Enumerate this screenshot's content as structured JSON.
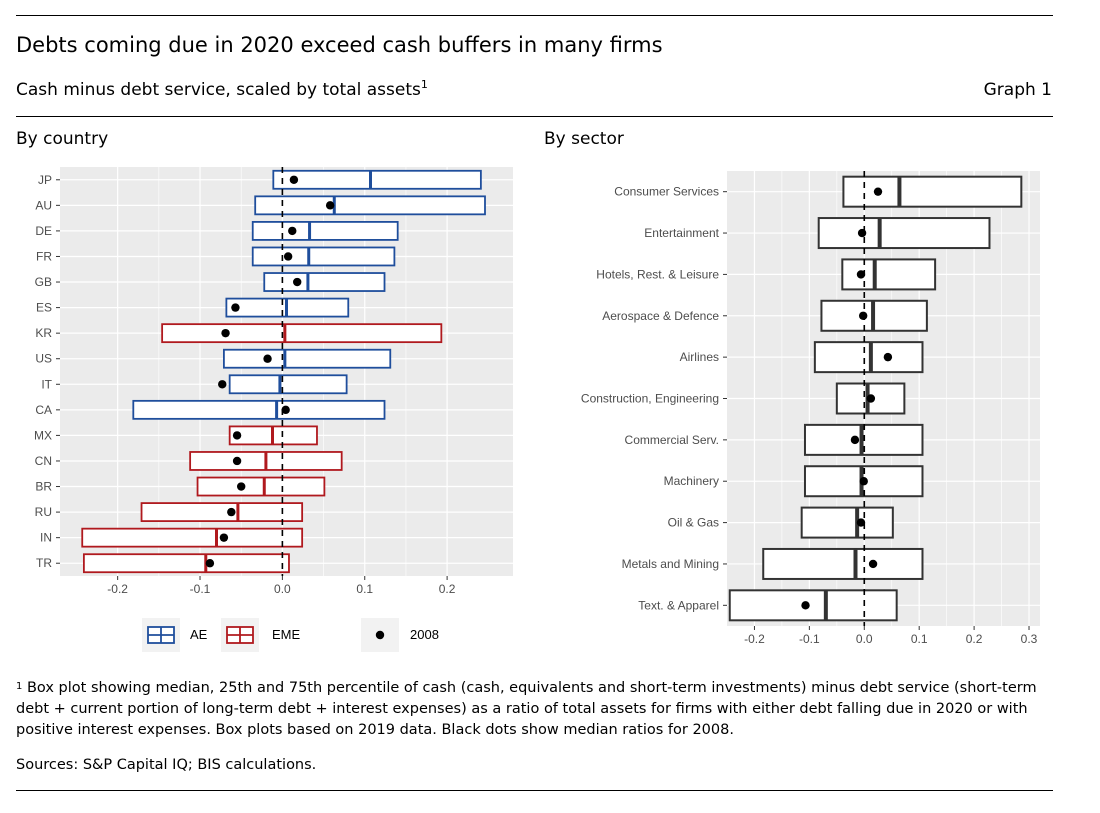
{
  "title": "Debts coming due in 2020 exceed cash buffers in many firms",
  "subtitle": "Cash minus debt service, scaled by total assets",
  "subtitle_sup": "1",
  "graph_label": "Graph 1",
  "footnote_mark": "1",
  "footnote": "Box plot showing median, 25th and 75th percentile of cash (cash, equivalents and short-term investments) minus debt service (short-term debt + current portion of long-term debt + interest expenses) as a ratio of total assets for firms with either debt falling due in 2020 or with positive interest expenses. Box plots based on 2019 data. Black dots show median ratios for 2008.",
  "sources": "Sources: S&P Capital IQ; BIS calculations.",
  "colors": {
    "AE": "#1f4e9c",
    "EME": "#b0191e",
    "sector": "#333333",
    "panel_bg": "#ebebeb"
  },
  "chart_data": [
    {
      "type": "boxplot",
      "title": "By country",
      "orientation": "horizontal",
      "xlim": [
        -0.27,
        0.28
      ],
      "xticks": [
        -0.2,
        -0.1,
        0.0,
        0.1,
        0.2
      ],
      "xtick_labels": [
        "-0.2",
        "-0.1",
        "0.0",
        "0.1",
        "0.2"
      ],
      "reference_line": 0,
      "legend": {
        "placement": "bottom",
        "entries": [
          "AE",
          "EME"
        ],
        "point_label": "2008"
      },
      "categories": [
        "JP",
        "AU",
        "DE",
        "FR",
        "GB",
        "ES",
        "KR",
        "US",
        "IT",
        "CA",
        "MX",
        "CN",
        "BR",
        "RU",
        "IN",
        "TR"
      ],
      "group": [
        "AE",
        "AE",
        "AE",
        "AE",
        "AE",
        "AE",
        "EME",
        "AE",
        "AE",
        "AE",
        "EME",
        "EME",
        "EME",
        "EME",
        "EME",
        "EME"
      ],
      "q1": [
        -0.011,
        -0.033,
        -0.036,
        -0.036,
        -0.022,
        -0.068,
        -0.146,
        -0.071,
        -0.064,
        -0.181,
        -0.064,
        -0.112,
        -0.103,
        -0.171,
        -0.243,
        -0.241
      ],
      "median": [
        0.107,
        0.063,
        0.033,
        0.032,
        0.031,
        0.005,
        0.003,
        0.003,
        -0.003,
        -0.007,
        -0.012,
        -0.02,
        -0.022,
        -0.054,
        -0.08,
        -0.093
      ],
      "q3": [
        0.241,
        0.246,
        0.14,
        0.136,
        0.124,
        0.08,
        0.193,
        0.131,
        0.078,
        0.124,
        0.042,
        0.072,
        0.051,
        0.024,
        0.024,
        0.008
      ],
      "points_2008": [
        0.014,
        0.058,
        0.012,
        0.007,
        0.018,
        -0.057,
        -0.069,
        -0.018,
        -0.073,
        0.004,
        -0.055,
        -0.055,
        -0.05,
        -0.062,
        -0.071,
        -0.088
      ]
    },
    {
      "type": "boxplot",
      "title": "By sector",
      "orientation": "horizontal",
      "xlim": [
        -0.25,
        0.32
      ],
      "xticks": [
        -0.2,
        -0.1,
        0.0,
        0.1,
        0.2,
        0.3
      ],
      "xtick_labels": [
        "-0.2",
        "-0.1",
        "0.0",
        "0.1",
        "0.2",
        "0.3"
      ],
      "reference_line": 0,
      "categories": [
        "Consumer Services",
        "Entertainment",
        "Hotels, Rest. & Leisure",
        "Aerospace & Defence",
        "Airlines",
        "Construction, Engineering",
        "Commercial Serv.",
        "Machinery",
        "Oil & Gas",
        "Metals and Mining",
        "Text. & Apparel"
      ],
      "q1": [
        -0.038,
        -0.083,
        -0.04,
        -0.078,
        -0.09,
        -0.05,
        -0.108,
        -0.108,
        -0.114,
        -0.184,
        -0.245
      ],
      "median": [
        0.064,
        0.028,
        0.019,
        0.016,
        0.012,
        0.006,
        -0.005,
        -0.005,
        -0.013,
        -0.016,
        -0.07
      ],
      "q3": [
        0.286,
        0.228,
        0.129,
        0.114,
        0.106,
        0.073,
        0.106,
        0.106,
        0.052,
        0.106,
        0.059
      ],
      "points_2008": [
        0.025,
        -0.004,
        -0.006,
        -0.002,
        0.043,
        0.012,
        -0.017,
        -0.001,
        -0.006,
        0.016,
        -0.107
      ]
    }
  ]
}
